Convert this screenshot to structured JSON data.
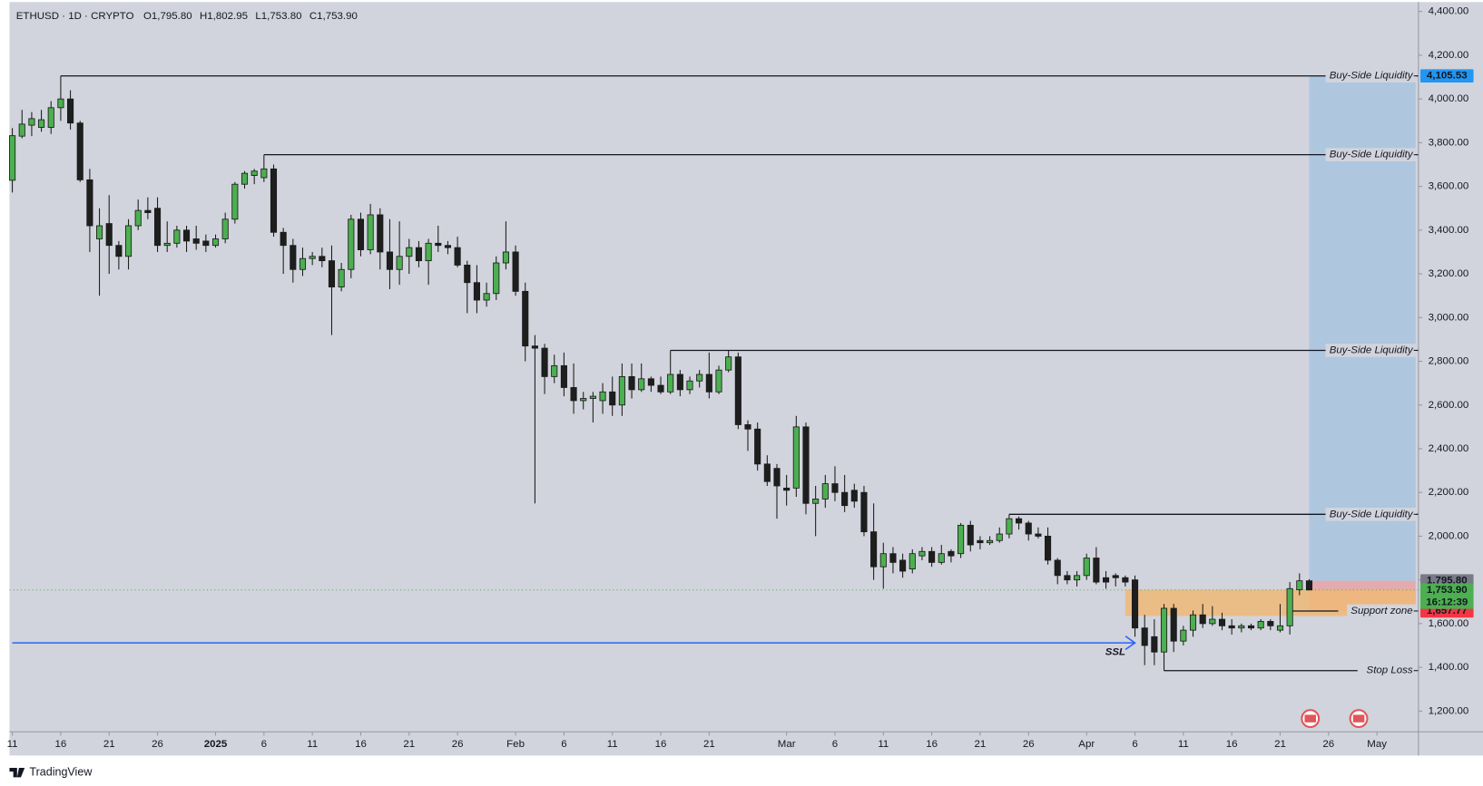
{
  "chart_data": {
    "type": "candlestick",
    "legend_header": {
      "symbol": "ETHUSD · 1D · CRYPTO",
      "ohlc": [
        {
          "key": "O",
          "value": "1,795.80"
        },
        {
          "key": "H",
          "value": "1,802.95"
        },
        {
          "key": "L",
          "value": "1,753.80"
        },
        {
          "key": "C",
          "value": "1,753.90"
        }
      ]
    },
    "up_color": "#4caf50",
    "down_color": "#1e1e1e",
    "wick_color": "#1a1a1a",
    "x": [
      "2024-12-11",
      "2024-12-12",
      "2024-12-13",
      "2024-12-14",
      "2024-12-15",
      "2024-12-16",
      "2024-12-17",
      "2024-12-18",
      "2024-12-19",
      "2024-12-20",
      "2024-12-21",
      "2024-12-22",
      "2024-12-23",
      "2024-12-24",
      "2024-12-25",
      "2024-12-26",
      "2024-12-27",
      "2024-12-28",
      "2024-12-29",
      "2024-12-30",
      "2024-12-31",
      "2025-01-01",
      "2025-01-02",
      "2025-01-03",
      "2025-01-04",
      "2025-01-05",
      "2025-01-06",
      "2025-01-07",
      "2025-01-08",
      "2025-01-09",
      "2025-01-10",
      "2025-01-11",
      "2025-01-12",
      "2025-01-13",
      "2025-01-14",
      "2025-01-15",
      "2025-01-16",
      "2025-01-17",
      "2025-01-18",
      "2025-01-19",
      "2025-01-20",
      "2025-01-21",
      "2025-01-22",
      "2025-01-23",
      "2025-01-24",
      "2025-01-25",
      "2025-01-26",
      "2025-01-27",
      "2025-01-28",
      "2025-01-29",
      "2025-01-30",
      "2025-01-31",
      "2025-02-01",
      "2025-02-02",
      "2025-02-03",
      "2025-02-04",
      "2025-02-05",
      "2025-02-06",
      "2025-02-07",
      "2025-02-08",
      "2025-02-09",
      "2025-02-10",
      "2025-02-11",
      "2025-02-12",
      "2025-02-13",
      "2025-02-14",
      "2025-02-15",
      "2025-02-16",
      "2025-02-17",
      "2025-02-18",
      "2025-02-19",
      "2025-02-20",
      "2025-02-21",
      "2025-02-22",
      "2025-02-23",
      "2025-02-24",
      "2025-02-25",
      "2025-02-26",
      "2025-02-27",
      "2025-02-28",
      "2025-03-01",
      "2025-03-02",
      "2025-03-03",
      "2025-03-04",
      "2025-03-05",
      "2025-03-06",
      "2025-03-07",
      "2025-03-08",
      "2025-03-09",
      "2025-03-10",
      "2025-03-11",
      "2025-03-12",
      "2025-03-13",
      "2025-03-14",
      "2025-03-15",
      "2025-03-16",
      "2025-03-17",
      "2025-03-18",
      "2025-03-19",
      "2025-03-20",
      "2025-03-21",
      "2025-03-22",
      "2025-03-23",
      "2025-03-24",
      "2025-03-25",
      "2025-03-26",
      "2025-03-27",
      "2025-03-28",
      "2025-03-29",
      "2025-03-30",
      "2025-03-31",
      "2025-04-01",
      "2025-04-02",
      "2025-04-03",
      "2025-04-04",
      "2025-04-05",
      "2025-04-06",
      "2025-04-07",
      "2025-04-08",
      "2025-04-09",
      "2025-04-10",
      "2025-04-11",
      "2025-04-12",
      "2025-04-13",
      "2025-04-14",
      "2025-04-15",
      "2025-04-16",
      "2025-04-17",
      "2025-04-18",
      "2025-04-19",
      "2025-04-20",
      "2025-04-21",
      "2025-04-22",
      "2025-04-23",
      "2025-04-24"
    ],
    "open": [
      3628,
      3830,
      3880,
      3870,
      3870,
      3960,
      4000,
      3890,
      3630,
      3360,
      3430,
      3330,
      3280,
      3420,
      3490,
      3500,
      3330,
      3340,
      3400,
      3360,
      3350,
      3330,
      3360,
      3450,
      3610,
      3650,
      3640,
      3680,
      3390,
      3330,
      3220,
      3270,
      3280,
      3260,
      3140,
      3220,
      3450,
      3310,
      3470,
      3300,
      3220,
      3280,
      3320,
      3260,
      3340,
      3330,
      3320,
      3240,
      3160,
      3080,
      3110,
      3250,
      3300,
      3120,
      2870,
      2860,
      2730,
      2780,
      2680,
      2620,
      2630,
      2620,
      2660,
      2600,
      2730,
      2670,
      2720,
      2690,
      2660,
      2740,
      2670,
      2710,
      2740,
      2660,
      2760,
      2820,
      2510,
      2490,
      2330,
      2310,
      2220,
      2220,
      2500,
      2150,
      2170,
      2240,
      2200,
      2210,
      2200,
      2020,
      1860,
      1920,
      1890,
      1850,
      1910,
      1930,
      1880,
      1930,
      1920,
      2050,
      1980,
      1970,
      1980,
      2010,
      2080,
      2060,
      2010,
      2000,
      1890,
      1820,
      1800,
      1820,
      1900,
      1810,
      1820,
      1810,
      1800,
      1580,
      1540,
      1470,
      1670,
      1520,
      1570,
      1640,
      1600,
      1620,
      1590,
      1580,
      1590,
      1580,
      1610,
      1570,
      1590,
      1755,
      1795.8
    ],
    "high": [
      3867,
      3950,
      3940,
      3950,
      3990,
      4105.53,
      4040,
      3900,
      3680,
      3500,
      3560,
      3350,
      3450,
      3540,
      3550,
      3550,
      3440,
      3420,
      3420,
      3420,
      3380,
      3380,
      3480,
      3620,
      3670,
      3680,
      3745,
      3700,
      3410,
      3360,
      3320,
      3300,
      3320,
      3330,
      3250,
      3470,
      3480,
      3520,
      3500,
      3450,
      3440,
      3360,
      3350,
      3360,
      3420,
      3350,
      3370,
      3260,
      3240,
      3160,
      3280,
      3440,
      3330,
      3160,
      2920,
      2880,
      2830,
      2840,
      2790,
      2660,
      2660,
      2700,
      2730,
      2790,
      2790,
      2790,
      2730,
      2730,
      2850,
      2760,
      2730,
      2760,
      2840,
      2780,
      2850,
      2840,
      2530,
      2520,
      2370,
      2330,
      2280,
      2550,
      2520,
      2230,
      2280,
      2320,
      2280,
      2240,
      2230,
      2150,
      1970,
      1950,
      1920,
      1940,
      1950,
      1950,
      1960,
      1940,
      2060,
      2070,
      2000,
      2000,
      2040,
      2100,
      2090,
      2070,
      2040,
      2040,
      1900,
      1840,
      1840,
      1920,
      1950,
      1840,
      1830,
      1820,
      1820,
      1640,
      1620,
      1690,
      1690,
      1590,
      1660,
      1690,
      1680,
      1650,
      1620,
      1600,
      1600,
      1620,
      1620,
      1690,
      1790,
      1830,
      1802.95
    ],
    "low": [
      3572,
      3820,
      3830,
      3850,
      3840,
      3900,
      3860,
      3620,
      3300,
      3100,
      3200,
      3220,
      3220,
      3400,
      3450,
      3300,
      3300,
      3320,
      3300,
      3310,
      3300,
      3320,
      3340,
      3430,
      3590,
      3610,
      3620,
      3370,
      3200,
      3160,
      3190,
      3240,
      3230,
      2920,
      3120,
      3180,
      3280,
      3290,
      3220,
      3130,
      3150,
      3200,
      3230,
      3150,
      3300,
      3290,
      3230,
      3020,
      3020,
      3050,
      3080,
      3220,
      3100,
      2800,
      2150,
      2650,
      2700,
      2640,
      2560,
      2580,
      2520,
      2560,
      2550,
      2550,
      2630,
      2660,
      2660,
      2650,
      2650,
      2640,
      2650,
      2680,
      2630,
      2650,
      2750,
      2490,
      2390,
      2300,
      2230,
      2080,
      2140,
      2180,
      2100,
      2000,
      2130,
      2160,
      2110,
      2130,
      2000,
      1800,
      1760,
      1830,
      1810,
      1830,
      1890,
      1860,
      1870,
      1880,
      1900,
      1930,
      1940,
      1960,
      1970,
      1990,
      2030,
      1980,
      1990,
      1870,
      1780,
      1780,
      1770,
      1800,
      1780,
      1760,
      1770,
      1770,
      1540,
      1410,
      1410,
      1385,
      1470,
      1500,
      1540,
      1580,
      1590,
      1570,
      1550,
      1560,
      1570,
      1570,
      1570,
      1560,
      1550,
      1730,
      1753.8
    ],
    "close": [
      3832,
      3885,
      3910,
      3905,
      3960,
      4000,
      3890,
      3630,
      3420,
      3420,
      3330,
      3280,
      3420,
      3490,
      3480,
      3330,
      3340,
      3400,
      3350,
      3340,
      3330,
      3360,
      3450,
      3610,
      3660,
      3670,
      3680,
      3390,
      3330,
      3220,
      3270,
      3280,
      3260,
      3140,
      3220,
      3450,
      3310,
      3470,
      3300,
      3220,
      3280,
      3320,
      3260,
      3340,
      3330,
      3320,
      3240,
      3160,
      3080,
      3110,
      3250,
      3300,
      3120,
      2870,
      2860,
      2730,
      2780,
      2680,
      2620,
      2630,
      2640,
      2660,
      2600,
      2730,
      2670,
      2720,
      2690,
      2660,
      2740,
      2670,
      2710,
      2740,
      2660,
      2760,
      2820,
      2510,
      2490,
      2330,
      2250,
      2230,
      2210,
      2500,
      2150,
      2170,
      2240,
      2200,
      2140,
      2160,
      2020,
      1860,
      1920,
      1880,
      1840,
      1920,
      1930,
      1880,
      1920,
      1910,
      2050,
      1960,
      1970,
      1980,
      2010,
      2080,
      2060,
      2010,
      2000,
      1890,
      1820,
      1800,
      1820,
      1900,
      1790,
      1790,
      1810,
      1790,
      1580,
      1500,
      1470,
      1670,
      1520,
      1570,
      1640,
      1600,
      1620,
      1590,
      1580,
      1590,
      1580,
      1610,
      1590,
      1590,
      1760,
      1795.8,
      1753.9
    ],
    "xlim": [
      "2024-12-11",
      "2025-05-05"
    ],
    "xticks": [
      {
        "value": "2024-12-11",
        "label": "11"
      },
      {
        "value": "2024-12-16",
        "label": "16"
      },
      {
        "value": "2024-12-21",
        "label": "21"
      },
      {
        "value": "2024-12-26",
        "label": "26"
      },
      {
        "value": "2025-01-01",
        "label": "2025",
        "bold": true
      },
      {
        "value": "2025-01-06",
        "label": "6"
      },
      {
        "value": "2025-01-11",
        "label": "11"
      },
      {
        "value": "2025-01-16",
        "label": "16"
      },
      {
        "value": "2025-01-21",
        "label": "21"
      },
      {
        "value": "2025-01-26",
        "label": "26"
      },
      {
        "value": "2025-02-01",
        "label": "Feb"
      },
      {
        "value": "2025-02-06",
        "label": "6"
      },
      {
        "value": "2025-02-11",
        "label": "11"
      },
      {
        "value": "2025-02-16",
        "label": "16"
      },
      {
        "value": "2025-02-21",
        "label": "21"
      },
      {
        "value": "2025-03-01",
        "label": "Mar"
      },
      {
        "value": "2025-03-06",
        "label": "6"
      },
      {
        "value": "2025-03-11",
        "label": "11"
      },
      {
        "value": "2025-03-16",
        "label": "16"
      },
      {
        "value": "2025-03-21",
        "label": "21"
      },
      {
        "value": "2025-03-26",
        "label": "26"
      },
      {
        "value": "2025-04-01",
        "label": "Apr"
      },
      {
        "value": "2025-04-06",
        "label": "6"
      },
      {
        "value": "2025-04-11",
        "label": "11"
      },
      {
        "value": "2025-04-16",
        "label": "16"
      },
      {
        "value": "2025-04-21",
        "label": "21"
      },
      {
        "value": "2025-04-26",
        "label": "26"
      },
      {
        "value": "2025-05-01",
        "label": "May"
      }
    ],
    "ylim": [
      1105,
      4452
    ],
    "yticks": [
      {
        "value": 4400,
        "label": "4,400.00"
      },
      {
        "value": 4200,
        "label": "4,200.00"
      },
      {
        "value": 4000,
        "label": "4,000.00"
      },
      {
        "value": 3800,
        "label": "3,800.00"
      },
      {
        "value": 3600,
        "label": "3,600.00"
      },
      {
        "value": 3400,
        "label": "3,400.00"
      },
      {
        "value": 3200,
        "label": "3,200.00"
      },
      {
        "value": 3000,
        "label": "3,000.00"
      },
      {
        "value": 2800,
        "label": "2,800.00"
      },
      {
        "value": 2600,
        "label": "2,600.00"
      },
      {
        "value": 2400,
        "label": "2,400.00"
      },
      {
        "value": 2200,
        "label": "2,200.00"
      },
      {
        "value": 2000,
        "label": "2,000.00"
      },
      {
        "value": 1800,
        "label": "1,800.00"
      },
      {
        "value": 1600,
        "label": "1,600.00"
      },
      {
        "value": 1400,
        "label": "1,400.00"
      },
      {
        "value": 1200,
        "label": "1,200.00"
      }
    ],
    "zones": [
      {
        "from": "2025-04-24",
        "to": "2025-05-05",
        "top": 4105.53,
        "bottom": 1795.8,
        "color": "#a9c3df"
      },
      {
        "from": "2025-04-24",
        "to": "2025-05-05",
        "top": 1795.8,
        "bottom": 1657.77,
        "color": "#e6a3a6"
      },
      {
        "from": "2025-04-05",
        "to": "2025-05-05",
        "top": 1755,
        "bottom": 1635,
        "color": "#f0b877"
      }
    ],
    "lines": [
      {
        "label": "Buy-Side Liquidity",
        "value": 4105.53,
        "from": "2024-12-16",
        "color": "#131722"
      },
      {
        "label": "Buy-Side Liquidity",
        "value": 3745,
        "from": "2025-01-06",
        "color": "#131722"
      },
      {
        "label": "Buy-Side Liquidity",
        "value": 2850,
        "from": "2025-02-17",
        "color": "#131722"
      },
      {
        "label": "Buy-Side Liquidity",
        "value": 2100,
        "from": "2025-03-24",
        "color": "#131722"
      },
      {
        "label": "Support zone",
        "value": 1657.77,
        "from": "2025-04-22",
        "to": "2025-04-27",
        "color": "#131722"
      },
      {
        "label": "Stop Loss",
        "value": 1385,
        "from": "2025-04-09",
        "to": "2025-04-29",
        "color": "#131722"
      },
      {
        "label": "SSL",
        "value": 1512,
        "from": "2024-12-11",
        "to": "2025-04-06",
        "color": "#2962ff",
        "label_position": "below"
      }
    ],
    "price_tags": [
      {
        "value": 4105.53,
        "label": "4,105.53",
        "color": "#2196f3"
      },
      {
        "value": 1795.8,
        "label": "1,795.80",
        "color": "#787b86"
      },
      {
        "value": 1657.77,
        "label": "1,657.77",
        "color": "#f23645"
      },
      {
        "value": 1753.9,
        "label": "1,753.90",
        "sub": "16:12:39",
        "color": "#4caf50"
      }
    ],
    "last_price_line": true
  },
  "footer": {
    "brand": "TradingView"
  }
}
